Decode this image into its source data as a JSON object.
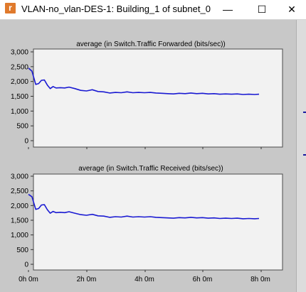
{
  "window": {
    "title": "VLAN-no_vlan-DES-1: Building_1 of subnet_0",
    "icon_letter": "r",
    "minimize_glyph": "—",
    "maximize_glyph": "☐",
    "close_glyph": "✕"
  },
  "colors": {
    "series": "#1a1ad2",
    "panel_bg": "#f2f2f2",
    "window_bg": "#c8c8c8"
  },
  "chart_data": [
    {
      "type": "line",
      "title": "average (in Switch.Traffic Forwarded (bits/sec))",
      "xlabel": "",
      "ylabel": "",
      "ylim": [
        0,
        3000
      ],
      "yticks": [
        0,
        500,
        1000,
        1500,
        2000,
        2500,
        3000
      ],
      "ytick_labels": [
        "0",
        "500",
        "1,000",
        "1,500",
        "2,000",
        "2,500",
        "3,000"
      ],
      "xlim": [
        0,
        9
      ],
      "grid": false,
      "series": [
        {
          "x": [
            0,
            0.12,
            0.25,
            0.35,
            0.45,
            0.55,
            0.65,
            0.75,
            0.85,
            0.95,
            1.1,
            1.25,
            1.4,
            1.6,
            1.8,
            2.0,
            2.2,
            2.4,
            2.6,
            2.8,
            3.0,
            3.2,
            3.4,
            3.6,
            3.8,
            4.0,
            4.2,
            4.4,
            4.6,
            4.8,
            5.0,
            5.2,
            5.4,
            5.6,
            5.8,
            6.0,
            6.2,
            6.4,
            6.6,
            6.8,
            7.0,
            7.2,
            7.4,
            7.6,
            7.8,
            7.95
          ],
          "values": [
            2450,
            2350,
            1900,
            1930,
            2040,
            2050,
            1880,
            1760,
            1830,
            1780,
            1790,
            1780,
            1810,
            1760,
            1700,
            1680,
            1720,
            1660,
            1650,
            1610,
            1630,
            1620,
            1650,
            1620,
            1630,
            1620,
            1630,
            1610,
            1600,
            1590,
            1580,
            1600,
            1590,
            1610,
            1590,
            1600,
            1580,
            1590,
            1570,
            1580,
            1570,
            1580,
            1560,
            1570,
            1560,
            1570
          ]
        }
      ]
    },
    {
      "type": "line",
      "title": "average (in Switch.Traffic Received (bits/sec))",
      "xlabel": "",
      "ylabel": "",
      "ylim": [
        0,
        3000
      ],
      "yticks": [
        0,
        500,
        1000,
        1500,
        2000,
        2500,
        3000
      ],
      "ytick_labels": [
        "0",
        "500",
        "1,000",
        "1,500",
        "2,000",
        "2,500",
        "3,000"
      ],
      "xlim": [
        0,
        9
      ],
      "xticks": [
        0,
        2,
        4,
        6,
        8
      ],
      "xtick_labels": [
        "0h 0m",
        "2h 0m",
        "4h 0m",
        "6h 0m",
        "8h 0m"
      ],
      "grid": false,
      "series": [
        {
          "x": [
            0,
            0.12,
            0.25,
            0.35,
            0.45,
            0.55,
            0.65,
            0.75,
            0.85,
            0.95,
            1.1,
            1.25,
            1.4,
            1.6,
            1.8,
            2.0,
            2.2,
            2.4,
            2.6,
            2.8,
            3.0,
            3.2,
            3.4,
            3.6,
            3.8,
            4.0,
            4.2,
            4.4,
            4.6,
            4.8,
            5.0,
            5.2,
            5.4,
            5.6,
            5.8,
            6.0,
            6.2,
            6.4,
            6.6,
            6.8,
            7.0,
            7.2,
            7.4,
            7.6,
            7.8,
            7.95
          ],
          "values": [
            2380,
            2300,
            1870,
            1900,
            2020,
            2030,
            1860,
            1740,
            1800,
            1760,
            1770,
            1760,
            1790,
            1740,
            1690,
            1670,
            1700,
            1650,
            1640,
            1600,
            1620,
            1610,
            1640,
            1610,
            1620,
            1610,
            1620,
            1600,
            1590,
            1580,
            1570,
            1590,
            1580,
            1600,
            1580,
            1590,
            1570,
            1580,
            1560,
            1570,
            1560,
            1570,
            1550,
            1560,
            1550,
            1560
          ]
        }
      ]
    }
  ]
}
